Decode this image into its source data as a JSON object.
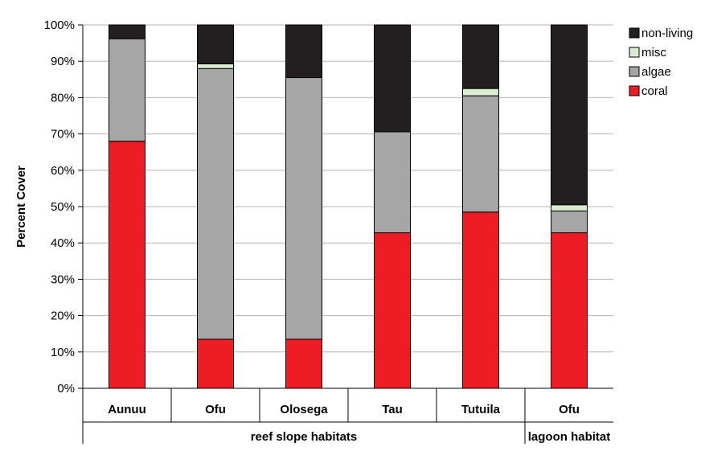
{
  "chart_data": {
    "type": "bar",
    "stacked": true,
    "ylabel": "Percent Cover",
    "ylim": [
      0,
      100
    ],
    "y_ticks": [
      "0%",
      "10%",
      "20%",
      "30%",
      "40%",
      "50%",
      "60%",
      "70%",
      "80%",
      "90%",
      "100%"
    ],
    "grid": true,
    "legend_position": "top-right",
    "categories": [
      "Aunuu",
      "Ofu",
      "Olosega",
      "Tau",
      "Tutuila",
      "Ofu"
    ],
    "groups": [
      {
        "label": "reef slope habitats",
        "categories": [
          0,
          1,
          2,
          3,
          4
        ]
      },
      {
        "label": "lagoon habitat",
        "categories": [
          5
        ]
      }
    ],
    "series": [
      {
        "name": "coral",
        "color": "#ee1c24",
        "values": [
          68,
          13.5,
          13.5,
          42.8,
          48.5,
          42.8
        ]
      },
      {
        "name": "algae",
        "color": "#a6a6a6",
        "values": [
          28.2,
          74.5,
          72,
          27.8,
          32,
          6
        ]
      },
      {
        "name": "misc",
        "color": "#d9ecd0",
        "values": [
          0,
          1.3,
          0,
          0,
          2,
          1.7
        ]
      },
      {
        "name": "non-living",
        "color": "#231f20",
        "values": [
          3.8,
          10.7,
          14.5,
          29.4,
          17.5,
          49.5
        ]
      }
    ],
    "legend_order": [
      "non-living",
      "misc",
      "algae",
      "coral"
    ]
  }
}
